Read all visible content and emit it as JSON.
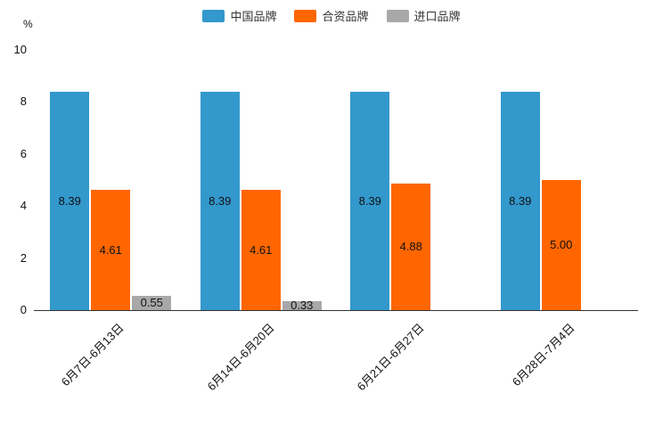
{
  "chart_data": {
    "type": "bar",
    "title": "",
    "unit_label": "%",
    "categories": [
      "6月7日-6月13日",
      "6月14日-6月20日",
      "6月21日-6月27日",
      "6月28日-7月4日"
    ],
    "series": [
      {
        "name": "中国品牌",
        "color": "#3398CC",
        "values": [
          8.39,
          8.39,
          8.39,
          8.39
        ]
      },
      {
        "name": "合资品牌",
        "color": "#FF6600",
        "values": [
          4.61,
          4.61,
          4.88,
          5.0
        ]
      },
      {
        "name": "进口品牌",
        "color": "#A8A8A8",
        "values": [
          0.55,
          0.33,
          null,
          null
        ]
      }
    ],
    "ylim": [
      0,
      10
    ],
    "yticks": [
      0,
      2,
      4,
      6,
      8,
      10
    ],
    "grid": false,
    "legend_position": "top",
    "label_format_decimals": 2
  }
}
